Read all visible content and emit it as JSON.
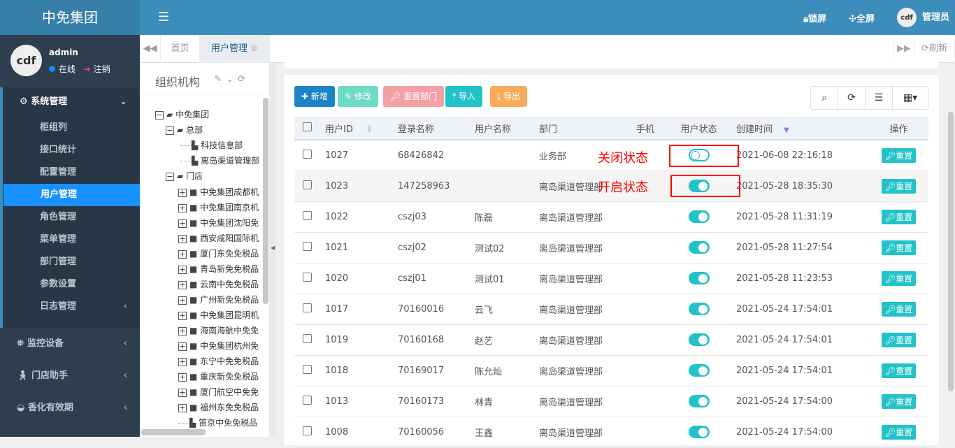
{
  "header": {
    "brand": "中免集团",
    "lock": "锁屏",
    "fullscreen": "全屏",
    "user": "管理员",
    "avatar_text": "cdf"
  },
  "sidebar": {
    "username": "admin",
    "status": "在线",
    "logout": "注销",
    "avatar_text": "cdf",
    "group": {
      "label": "系统管理",
      "items": [
        {
          "label": "柜组列"
        },
        {
          "label": "接口统计"
        },
        {
          "label": "配置管理"
        },
        {
          "label": "用户管理",
          "active": true
        },
        {
          "label": "角色管理"
        },
        {
          "label": "菜单管理"
        },
        {
          "label": "部门管理"
        },
        {
          "label": "参数设置"
        },
        {
          "label": "日志管理"
        }
      ]
    },
    "menus": [
      {
        "label": "监控设备",
        "icon": "binoculars-icon"
      },
      {
        "label": "门店助手",
        "icon": "walking-icon"
      },
      {
        "label": "香化有效期",
        "icon": "dashboard-icon"
      }
    ]
  },
  "tabs": {
    "home": "首页",
    "current": "用户管理",
    "refresh": "刷新"
  },
  "tree": {
    "title": "组织机构",
    "root": "中免集团",
    "hq": "总部",
    "hq_children": [
      "科技信息部",
      "离岛渠道管理部"
    ],
    "stores": "门店",
    "store_children": [
      "中免集团成都机",
      "中免集团南京机",
      "中免集团沈阳免",
      "西安咸阳国际机",
      "厦门东免免税品",
      "青岛新免免税品",
      "云南中免免税品",
      "广州新免免税品",
      "中免集团昆明机",
      "海南海航中免免",
      "中免集团杭州免",
      "东宁中免免税品",
      "重庆新免免税品",
      "厦门航空中免免",
      "福州东免免税品",
      "笛京中免免税品"
    ]
  },
  "toolbar": {
    "add": "新增",
    "edit": "修改",
    "reset_dept": "重置部门",
    "import": "导入",
    "export": "导出"
  },
  "table": {
    "headers": [
      "用户ID",
      "登录名称",
      "用户名称",
      "部门",
      "手机",
      "用户状态",
      "创建时间",
      "操作"
    ],
    "action_label": "重置",
    "rows": [
      {
        "id": "1027",
        "login": "68426842",
        "name": "",
        "dept": "业务部",
        "phone": "",
        "enabled": false,
        "created": "2021-06-08 22:16:18"
      },
      {
        "id": "1023",
        "login": "147258963",
        "name": "",
        "dept": "离岛渠道管理部",
        "phone": "",
        "enabled": true,
        "created": "2021-05-28 18:35:30"
      },
      {
        "id": "1022",
        "login": "cszj03",
        "name": "陈磊",
        "dept": "离岛渠道管理部",
        "phone": "",
        "enabled": true,
        "created": "2021-05-28 11:31:19"
      },
      {
        "id": "1021",
        "login": "cszj02",
        "name": "测试02",
        "dept": "离岛渠道管理部",
        "phone": "",
        "enabled": true,
        "created": "2021-05-28 11:27:54"
      },
      {
        "id": "1020",
        "login": "cszj01",
        "name": "测试01",
        "dept": "离岛渠道管理部",
        "phone": "",
        "enabled": true,
        "created": "2021-05-28 11:23:53"
      },
      {
        "id": "1017",
        "login": "70160016",
        "name": "云飞",
        "dept": "离岛渠道管理部",
        "phone": "",
        "enabled": true,
        "created": "2021-05-24 17:54:01"
      },
      {
        "id": "1019",
        "login": "70160168",
        "name": "赵艺",
        "dept": "离岛渠道管理部",
        "phone": "",
        "enabled": true,
        "created": "2021-05-24 17:54:01"
      },
      {
        "id": "1018",
        "login": "70169017",
        "name": "陈允灿",
        "dept": "离岛渠道管理部",
        "phone": "",
        "enabled": true,
        "created": "2021-05-24 17:54:01"
      },
      {
        "id": "1013",
        "login": "70160173",
        "name": "林青",
        "dept": "离岛渠道管理部",
        "phone": "",
        "enabled": true,
        "created": "2021-05-24 17:54:00"
      },
      {
        "id": "1008",
        "login": "70160056",
        "name": "王鑫",
        "dept": "离岛渠道管理部",
        "phone": "",
        "enabled": true,
        "created": "2021-05-24 17:54:00"
      }
    ]
  },
  "annotations": {
    "off": "关闭状态",
    "on": "开启状态"
  },
  "colors": {
    "header": "#3c8dbc",
    "sidebar": "#2f3e4e",
    "active": "#1890ff",
    "add": "#1c84c6",
    "edit": "#6fdbc4",
    "reset": "#f4a0a7",
    "import": "#22c3c8",
    "export": "#f8ac59",
    "annotation": "#ff0000"
  }
}
